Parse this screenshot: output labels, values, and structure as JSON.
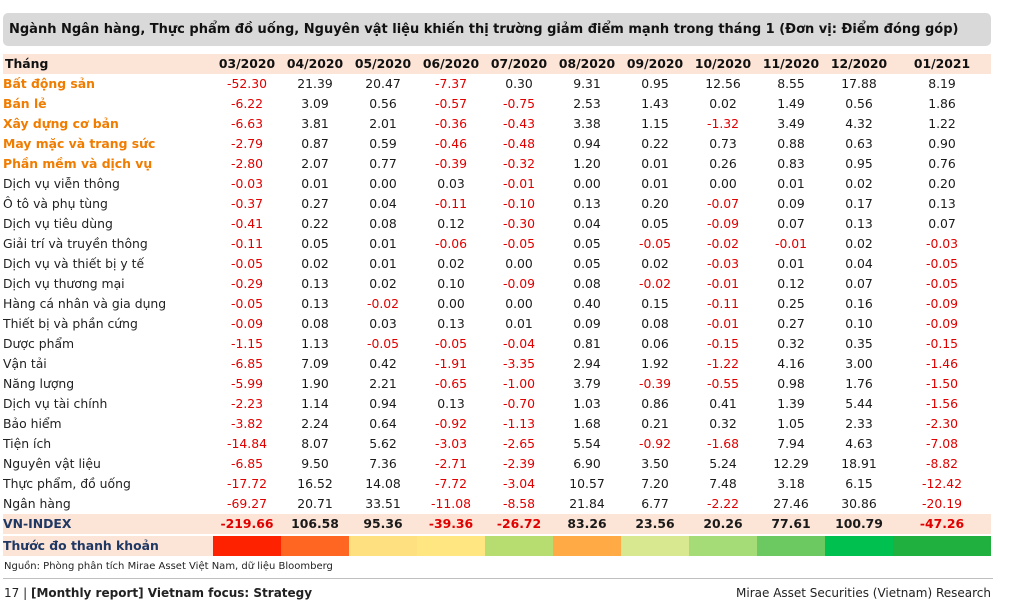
{
  "title": "Ngành Ngân hàng, Thực phẩm đồ uống, Nguyên vật liệu khiến thị trường giảm điểm mạnh trong tháng 1 (Đơn vị: Điểm đóng góp)",
  "table": {
    "header_label": "Tháng",
    "months": [
      "03/2020",
      "04/2020",
      "05/2020",
      "06/2020",
      "07/2020",
      "08/2020",
      "09/2020",
      "10/2020",
      "11/2020",
      "12/2020",
      "01/2021"
    ],
    "rows": [
      {
        "name": "Bất động sản",
        "highlight": true,
        "values": [
          "-52.30",
          "21.39",
          "20.47",
          "-7.37",
          "0.30",
          "9.31",
          "0.95",
          "12.56",
          "8.55",
          "17.88",
          "8.19"
        ]
      },
      {
        "name": "Bán lẻ",
        "highlight": true,
        "values": [
          "-6.22",
          "3.09",
          "0.56",
          "-0.57",
          "-0.75",
          "2.53",
          "1.43",
          "0.02",
          "1.49",
          "0.56",
          "1.86"
        ]
      },
      {
        "name": "Xây dựng cơ bản",
        "highlight": true,
        "values": [
          "-6.63",
          "3.81",
          "2.01",
          "-0.36",
          "-0.43",
          "3.38",
          "1.15",
          "-1.32",
          "3.49",
          "4.32",
          "1.22"
        ]
      },
      {
        "name": "May mặc và trang sức",
        "highlight": true,
        "values": [
          "-2.79",
          "0.87",
          "0.59",
          "-0.46",
          "-0.48",
          "0.94",
          "0.22",
          "0.73",
          "0.88",
          "0.63",
          "0.90"
        ]
      },
      {
        "name": "Phần mềm và dịch vụ",
        "highlight": true,
        "values": [
          "-2.80",
          "2.07",
          "0.77",
          "-0.39",
          "-0.32",
          "1.20",
          "0.01",
          "0.26",
          "0.83",
          "0.95",
          "0.76"
        ]
      },
      {
        "name": "Dịch vụ viễn thông",
        "highlight": false,
        "values": [
          "-0.03",
          "0.01",
          "0.00",
          "0.03",
          "-0.01",
          "0.00",
          "0.01",
          "0.00",
          "0.01",
          "0.02",
          "0.20"
        ]
      },
      {
        "name": "Ô tô và phụ tùng",
        "highlight": false,
        "values": [
          "-0.37",
          "0.27",
          "0.04",
          "-0.11",
          "-0.10",
          "0.13",
          "0.20",
          "-0.07",
          "0.09",
          "0.17",
          "0.13"
        ]
      },
      {
        "name": "Dịch vụ tiêu dùng",
        "highlight": false,
        "values": [
          "-0.41",
          "0.22",
          "0.08",
          "0.12",
          "-0.30",
          "0.04",
          "0.05",
          "-0.09",
          "0.07",
          "0.13",
          "0.07"
        ]
      },
      {
        "name": "Giải trí và truyền thông",
        "highlight": false,
        "values": [
          "-0.11",
          "0.05",
          "0.01",
          "-0.06",
          "-0.05",
          "0.05",
          "-0.05",
          "-0.02",
          "-0.01",
          "0.02",
          "-0.03"
        ]
      },
      {
        "name": "Dịch vụ và thiết bị y tế",
        "highlight": false,
        "values": [
          "-0.05",
          "0.02",
          "0.01",
          "0.02",
          "0.00",
          "0.05",
          "0.02",
          "-0.03",
          "0.01",
          "0.04",
          "-0.05"
        ]
      },
      {
        "name": "Dịch vụ thương mại",
        "highlight": false,
        "values": [
          "-0.29",
          "0.13",
          "0.02",
          "0.10",
          "-0.09",
          "0.08",
          "-0.02",
          "-0.01",
          "0.12",
          "0.07",
          "-0.05"
        ]
      },
      {
        "name": "Hàng cá nhân và gia dụng",
        "highlight": false,
        "values": [
          "-0.05",
          "0.13",
          "-0.02",
          "0.00",
          "0.00",
          "0.40",
          "0.15",
          "-0.11",
          "0.25",
          "0.16",
          "-0.09"
        ]
      },
      {
        "name": "Thiết bị và phần cứng",
        "highlight": false,
        "values": [
          "-0.09",
          "0.08",
          "0.03",
          "0.13",
          "0.01",
          "0.09",
          "0.08",
          "-0.01",
          "0.27",
          "0.10",
          "-0.09"
        ]
      },
      {
        "name": "Dược phẩm",
        "highlight": false,
        "values": [
          "-1.15",
          "1.13",
          "-0.05",
          "-0.05",
          "-0.04",
          "0.81",
          "0.06",
          "-0.15",
          "0.32",
          "0.35",
          "-0.15"
        ]
      },
      {
        "name": "Vận tải",
        "highlight": false,
        "values": [
          "-6.85",
          "7.09",
          "0.42",
          "-1.91",
          "-3.35",
          "2.94",
          "1.92",
          "-1.22",
          "4.16",
          "3.00",
          "-1.46"
        ]
      },
      {
        "name": "Năng lượng",
        "highlight": false,
        "values": [
          "-5.99",
          "1.90",
          "2.21",
          "-0.65",
          "-1.00",
          "3.79",
          "-0.39",
          "-0.55",
          "0.98",
          "1.76",
          "-1.50"
        ]
      },
      {
        "name": "Dịch vụ tài chính",
        "highlight": false,
        "values": [
          "-2.23",
          "1.14",
          "0.94",
          "0.13",
          "-0.70",
          "1.03",
          "0.86",
          "0.41",
          "1.39",
          "5.44",
          "-1.56"
        ]
      },
      {
        "name": "Bảo hiểm",
        "highlight": false,
        "values": [
          "-3.82",
          "2.24",
          "0.64",
          "-0.92",
          "-1.13",
          "1.68",
          "0.21",
          "0.32",
          "1.05",
          "2.33",
          "-2.30"
        ]
      },
      {
        "name": "Tiện ích",
        "highlight": false,
        "values": [
          "-14.84",
          "8.07",
          "5.62",
          "-3.03",
          "-2.65",
          "5.54",
          "-0.92",
          "-1.68",
          "7.94",
          "4.63",
          "-7.08"
        ]
      },
      {
        "name": "Nguyên vật liệu",
        "highlight": false,
        "values": [
          "-6.85",
          "9.50",
          "7.36",
          "-2.71",
          "-2.39",
          "6.90",
          "3.50",
          "5.24",
          "12.29",
          "18.91",
          "-8.82"
        ]
      },
      {
        "name": "Thực phẩm, đồ uống",
        "highlight": false,
        "values": [
          "-17.72",
          "16.52",
          "14.08",
          "-7.72",
          "-3.04",
          "10.57",
          "7.20",
          "7.48",
          "3.18",
          "6.15",
          "-12.42"
        ]
      },
      {
        "name": "Ngân hàng",
        "highlight": false,
        "values": [
          "-69.27",
          "20.71",
          "33.51",
          "-11.08",
          "-8.58",
          "21.84",
          "6.77",
          "-2.22",
          "27.46",
          "30.86",
          "-20.19"
        ]
      }
    ],
    "total": {
      "name": "VN-INDEX",
      "values": [
        "-219.66",
        "106.58",
        "95.36",
        "-39.36",
        "-26.72",
        "83.26",
        "23.56",
        "20.26",
        "77.61",
        "100.79",
        "-47.26"
      ]
    },
    "liquidity": {
      "name": "Thước đo thanh khoản",
      "colors": [
        "#ff2200",
        "#ff6622",
        "#ffe080",
        "#ffe680",
        "#b7dc70",
        "#ffaa44",
        "#d8e890",
        "#a6dc78",
        "#6cc860",
        "#00c050",
        "#20b040"
      ]
    }
  },
  "source": "Nguồn: Phòng phân tích Mirae Asset Việt Nam, dữ liệu Bloomberg",
  "footer": {
    "page": "17 | ",
    "report": "[Monthly report] Vietnam focus: Strategy",
    "company": "Mirae Asset Securities (Vietnam) Research"
  }
}
